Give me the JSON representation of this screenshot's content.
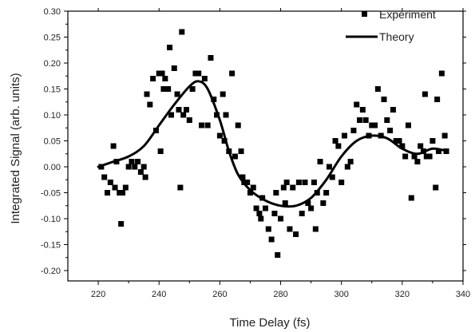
{
  "chart_data": {
    "type": "scatter",
    "title": "",
    "xlabel": "Time Delay (fs)",
    "ylabel": "Integrated Signal (arb. units)",
    "xlim": [
      210,
      340
    ],
    "ylim": [
      -0.22,
      0.3
    ],
    "xticks": [
      220,
      240,
      260,
      280,
      300,
      320,
      340
    ],
    "yticks": [
      -0.2,
      -0.15,
      -0.1,
      -0.05,
      0.0,
      0.05,
      0.1,
      0.15,
      0.2,
      0.25,
      0.3
    ],
    "xtick_labels": [
      "220",
      "240",
      "260",
      "280",
      "300",
      "320",
      "340"
    ],
    "ytick_labels": [
      "-0.20",
      "-0.15",
      "-0.10",
      "-0.05",
      "0.00",
      "0.05",
      "0.10",
      "0.15",
      "0.20",
      "0.25",
      "0.30"
    ],
    "grid": false,
    "legend_position": "top-right",
    "legend": [
      {
        "label": "Experiment",
        "marker": "square"
      },
      {
        "label": "Theory",
        "marker": "line"
      }
    ],
    "series": [
      {
        "name": "Experiment",
        "kind": "scatter",
        "color": "#000000",
        "points": [
          [
            221,
            0.0
          ],
          [
            222,
            -0.02
          ],
          [
            223,
            -0.05
          ],
          [
            224,
            -0.03
          ],
          [
            225,
            0.04
          ],
          [
            225.5,
            -0.04
          ],
          [
            226,
            0.01
          ],
          [
            227,
            -0.05
          ],
          [
            227.5,
            -0.11
          ],
          [
            228,
            -0.05
          ],
          [
            229,
            -0.04
          ],
          [
            230,
            0.0
          ],
          [
            231,
            0.01
          ],
          [
            232,
            0.0
          ],
          [
            233,
            0.01
          ],
          [
            234,
            -0.01
          ],
          [
            235,
            0.0
          ],
          [
            235.5,
            -0.02
          ],
          [
            236,
            0.14
          ],
          [
            237,
            0.12
          ],
          [
            238,
            0.17
          ],
          [
            239,
            0.07
          ],
          [
            240,
            0.18
          ],
          [
            240.5,
            0.03
          ],
          [
            241,
            0.18
          ],
          [
            241.5,
            0.15
          ],
          [
            242,
            0.17
          ],
          [
            243,
            0.15
          ],
          [
            243.5,
            0.23
          ],
          [
            244,
            0.1
          ],
          [
            245,
            0.19
          ],
          [
            246,
            0.14
          ],
          [
            246.5,
            0.11
          ],
          [
            247,
            -0.04
          ],
          [
            247.5,
            0.26
          ],
          [
            248,
            0.1
          ],
          [
            249,
            0.11
          ],
          [
            250,
            0.09
          ],
          [
            251,
            0.15
          ],
          [
            252,
            0.18
          ],
          [
            253,
            0.18
          ],
          [
            254,
            0.08
          ],
          [
            255,
            0.17
          ],
          [
            256,
            0.08
          ],
          [
            257,
            0.21
          ],
          [
            258,
            0.13
          ],
          [
            259,
            0.1
          ],
          [
            260,
            0.06
          ],
          [
            261,
            0.14
          ],
          [
            261.5,
            0.05
          ],
          [
            262,
            0.1
          ],
          [
            263,
            0.03
          ],
          [
            264,
            0.18
          ],
          [
            265,
            0.02
          ],
          [
            266,
            0.08
          ],
          [
            267,
            0.03
          ],
          [
            267.5,
            -0.02
          ],
          [
            268,
            -0.03
          ],
          [
            269,
            -0.03
          ],
          [
            270,
            -0.05
          ],
          [
            271,
            -0.04
          ],
          [
            272,
            -0.08
          ],
          [
            273,
            -0.09
          ],
          [
            273.5,
            -0.1
          ],
          [
            274,
            -0.06
          ],
          [
            275,
            -0.08
          ],
          [
            276,
            -0.12
          ],
          [
            277,
            -0.14
          ],
          [
            278,
            -0.09
          ],
          [
            278.5,
            -0.05
          ],
          [
            279,
            -0.17
          ],
          [
            280,
            -0.1
          ],
          [
            281,
            -0.04
          ],
          [
            281.5,
            -0.07
          ],
          [
            282,
            -0.03
          ],
          [
            283,
            -0.12
          ],
          [
            284,
            -0.04
          ],
          [
            285,
            -0.13
          ],
          [
            286,
            -0.03
          ],
          [
            287,
            -0.09
          ],
          [
            288,
            -0.03
          ],
          [
            289,
            -0.07
          ],
          [
            290,
            -0.08
          ],
          [
            291,
            -0.03
          ],
          [
            291.5,
            -0.12
          ],
          [
            292,
            -0.05
          ],
          [
            293,
            0.01
          ],
          [
            294,
            -0.07
          ],
          [
            295,
            -0.05
          ],
          [
            296,
            0.0
          ],
          [
            297,
            -0.02
          ],
          [
            298,
            0.05
          ],
          [
            299,
            0.04
          ],
          [
            300,
            -0.03
          ],
          [
            301,
            0.06
          ],
          [
            302,
            0.0
          ],
          [
            303,
            0.01
          ],
          [
            304,
            0.07
          ],
          [
            305,
            0.12
          ],
          [
            306,
            0.09
          ],
          [
            307,
            0.11
          ],
          [
            308,
            0.09
          ],
          [
            309,
            0.06
          ],
          [
            310,
            0.08
          ],
          [
            311,
            0.08
          ],
          [
            312,
            0.15
          ],
          [
            313,
            0.06
          ],
          [
            314,
            0.13
          ],
          [
            315,
            0.09
          ],
          [
            316,
            0.07
          ],
          [
            317,
            0.11
          ],
          [
            318,
            0.05
          ],
          [
            319,
            0.05
          ],
          [
            320,
            0.04
          ],
          [
            321,
            0.02
          ],
          [
            322,
            0.08
          ],
          [
            323,
            -0.06
          ],
          [
            324,
            0.02
          ],
          [
            325,
            0.01
          ],
          [
            326,
            0.04
          ],
          [
            327,
            0.03
          ],
          [
            327.5,
            0.14
          ],
          [
            328,
            0.02
          ],
          [
            329,
            0.02
          ],
          [
            330,
            0.05
          ],
          [
            331,
            -0.04
          ],
          [
            331.5,
            0.13
          ],
          [
            332,
            0.03
          ],
          [
            333,
            0.18
          ],
          [
            334,
            0.06
          ],
          [
            334.5,
            0.03
          ]
        ]
      },
      {
        "name": "Theory",
        "kind": "line",
        "color": "#000000",
        "points": [
          [
            220,
            0.0
          ],
          [
            225,
            0.01
          ],
          [
            230,
            0.02
          ],
          [
            235,
            0.04
          ],
          [
            240,
            0.08
          ],
          [
            245,
            0.12
          ],
          [
            250,
            0.155
          ],
          [
            253,
            0.165
          ],
          [
            256,
            0.15
          ],
          [
            260,
            0.09
          ],
          [
            263,
            0.03
          ],
          [
            266,
            -0.015
          ],
          [
            270,
            -0.045
          ],
          [
            275,
            -0.065
          ],
          [
            280,
            -0.075
          ],
          [
            285,
            -0.075
          ],
          [
            290,
            -0.06
          ],
          [
            295,
            -0.025
          ],
          [
            300,
            0.02
          ],
          [
            305,
            0.05
          ],
          [
            310,
            0.06
          ],
          [
            315,
            0.055
          ],
          [
            320,
            0.035
          ],
          [
            325,
            0.025
          ],
          [
            330,
            0.035
          ],
          [
            335,
            0.03
          ]
        ]
      }
    ]
  }
}
